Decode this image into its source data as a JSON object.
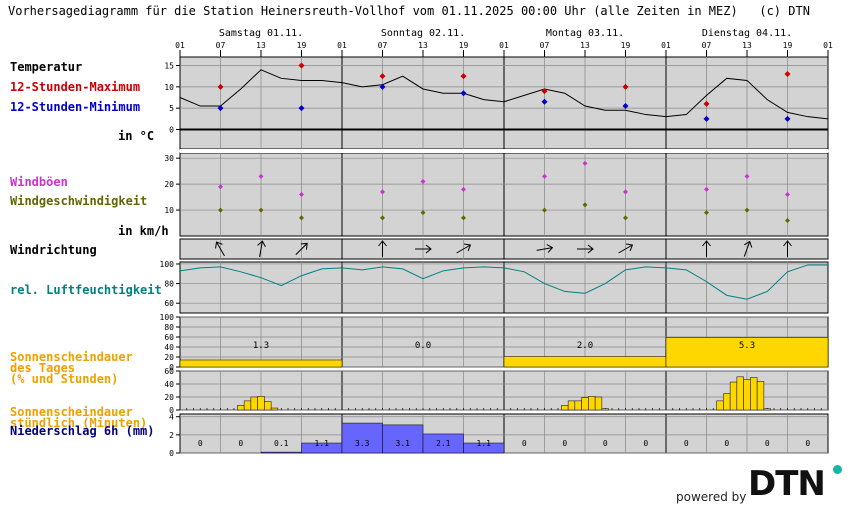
{
  "title": "Vorhersagediagramm für die Station Heinersreuth-Vollhof vom 01.11.2025 00:00 Uhr (alle Zeiten in MEZ)   (c) DTN",
  "days": [
    "Samstag 01.11.",
    "Sonntag 02.11.",
    "Montag 03.11.",
    "Dienstag 04.11."
  ],
  "hours": [
    "01",
    "07",
    "13",
    "19"
  ],
  "hour_end": "01",
  "colors": {
    "panel_bg": "#d3d3d3",
    "max": "#cc0000",
    "min": "#0000cc",
    "gust": "#cc33cc",
    "wind": "#666600",
    "humidity": "#008080",
    "sun": "#ffd700",
    "sun_label": "#f0a000",
    "precip": "#6666ff",
    "precip_label": "#000080"
  },
  "labels": {
    "temperatur": "Temperatur",
    "max": "12-Stunden-Maximum",
    "min": "12-Stunden-Minimum",
    "unit_temp": "in °C",
    "windboen": "Windböen",
    "windgeschw": "Windgeschwindigkeit",
    "unit_wind": "in km/h",
    "windrichtung": "Windrichtung",
    "feuchte": "rel. Luftfeuchtigkeit",
    "sonne_tag_1": "Sonnenscheindauer",
    "sonne_tag_2": "des Tages",
    "sonne_tag_3": "(% und Stunden)",
    "sonne_h_1": "Sonnenscheindauer",
    "sonne_h_2": "stündlich (Minuten)",
    "niederschlag": "Niederschlag 6h (mm)"
  },
  "logo": {
    "powered": "powered by",
    "brand": "DTN"
  },
  "chart_data": [
    {
      "type": "line",
      "title": "Temperatur",
      "ylim": [
        -2,
        17
      ],
      "yticks": [
        0,
        5,
        10,
        15
      ],
      "x_hours": [
        0,
        3,
        6,
        9,
        12,
        15,
        18,
        21,
        24,
        27,
        30,
        33,
        36,
        39,
        42,
        45,
        48,
        51,
        54,
        57,
        60,
        63,
        66,
        69,
        72,
        75,
        78,
        81,
        84,
        87,
        90,
        93,
        96
      ],
      "temperature": [
        7.5,
        5.5,
        5.5,
        9.5,
        14,
        12,
        11.5,
        11.5,
        11,
        10,
        10.5,
        12.5,
        9.5,
        8.5,
        8.5,
        7,
        6.5,
        8,
        9.5,
        8.5,
        5.5,
        4.5,
        4.5,
        3.5,
        3,
        3.5,
        8,
        12,
        11.5,
        7,
        4,
        3,
        2.5
      ],
      "max": [
        {
          "hour": 6,
          "value": 10
        },
        {
          "hour": 18,
          "value": 15
        },
        {
          "hour": 30,
          "value": 12.5
        },
        {
          "hour": 42,
          "value": 12.5
        },
        {
          "hour": 54,
          "value": 9
        },
        {
          "hour": 66,
          "value": 10
        },
        {
          "hour": 78,
          "value": 6
        },
        {
          "hour": 90,
          "value": 13
        }
      ],
      "min": [
        {
          "hour": 6,
          "value": 5
        },
        {
          "hour": 18,
          "value": 5
        },
        {
          "hour": 30,
          "value": 10
        },
        {
          "hour": 42,
          "value": 8.5
        },
        {
          "hour": 54,
          "value": 6.5
        },
        {
          "hour": 66,
          "value": 5.5
        },
        {
          "hour": 78,
          "value": 2.5
        },
        {
          "hour": 90,
          "value": 2.5
        }
      ]
    },
    {
      "type": "scatter",
      "title": "Wind",
      "ylim": [
        0,
        32
      ],
      "yticks": [
        10,
        20,
        30
      ],
      "points": [
        {
          "hour": 6,
          "gust": 19,
          "speed": 10
        },
        {
          "hour": 12,
          "gust": 23,
          "speed": 10
        },
        {
          "hour": 18,
          "gust": 16,
          "speed": 7
        },
        {
          "hour": 30,
          "gust": 17,
          "speed": 7
        },
        {
          "hour": 36,
          "gust": 21,
          "speed": 9
        },
        {
          "hour": 42,
          "gust": 18,
          "speed": 7
        },
        {
          "hour": 54,
          "gust": 23,
          "speed": 10
        },
        {
          "hour": 60,
          "gust": 28,
          "speed": 12
        },
        {
          "hour": 66,
          "gust": 17,
          "speed": 7
        },
        {
          "hour": 78,
          "gust": 18,
          "speed": 9
        },
        {
          "hour": 84,
          "gust": 23,
          "speed": 10
        },
        {
          "hour": 90,
          "gust": 16,
          "speed": 6
        }
      ]
    },
    {
      "type": "scatter",
      "title": "Windrichtung",
      "directions": [
        {
          "hour": 6,
          "deg": 330
        },
        {
          "hour": 12,
          "deg": 10
        },
        {
          "hour": 18,
          "deg": 45
        },
        {
          "hour": 30,
          "deg": 0
        },
        {
          "hour": 36,
          "deg": 90
        },
        {
          "hour": 42,
          "deg": 60
        },
        {
          "hour": 54,
          "deg": 80
        },
        {
          "hour": 60,
          "deg": 90
        },
        {
          "hour": 66,
          "deg": 60
        },
        {
          "hour": 78,
          "deg": 0
        },
        {
          "hour": 84,
          "deg": 20
        },
        {
          "hour": 90,
          "deg": 0
        }
      ]
    },
    {
      "type": "line",
      "title": "rel. Luftfeuchtigkeit",
      "ylim": [
        50,
        102
      ],
      "yticks": [
        60,
        80,
        100
      ],
      "x_hours": [
        0,
        3,
        6,
        9,
        12,
        15,
        18,
        21,
        24,
        27,
        30,
        33,
        36,
        39,
        42,
        45,
        48,
        51,
        54,
        57,
        60,
        63,
        66,
        69,
        72,
        75,
        78,
        81,
        84,
        87,
        90,
        93,
        96
      ],
      "values": [
        93,
        96,
        97,
        92,
        86,
        78,
        88,
        95,
        96,
        94,
        97,
        95,
        85,
        93,
        96,
        97,
        96,
        92,
        80,
        72,
        70,
        80,
        94,
        97,
        96,
        94,
        82,
        68,
        64,
        72,
        92,
        99,
        99
      ]
    },
    {
      "type": "bar",
      "title": "Sonnenscheindauer des Tages",
      "ylim": [
        0,
        100
      ],
      "yticks": [
        0,
        20,
        40,
        60,
        80,
        100
      ],
      "categories": [
        "Samstag 01.11.",
        "Sonntag 02.11.",
        "Montag 03.11.",
        "Dienstag 04.11."
      ],
      "percent": [
        14,
        0,
        21,
        59
      ],
      "hours": [
        "1.3",
        "0.0",
        "2.0",
        "5.3"
      ]
    },
    {
      "type": "bar",
      "title": "Sonnenscheindauer stündlich",
      "ylim": [
        0,
        60
      ],
      "yticks": [
        0,
        20,
        40,
        60
      ],
      "minutes_by_hour": [
        {
          "hour": 9,
          "value": 7
        },
        {
          "hour": 10,
          "value": 14
        },
        {
          "hour": 11,
          "value": 20
        },
        {
          "hour": 12,
          "value": 21
        },
        {
          "hour": 13,
          "value": 13
        },
        {
          "hour": 14,
          "value": 3
        },
        {
          "hour": 57,
          "value": 7
        },
        {
          "hour": 58,
          "value": 14
        },
        {
          "hour": 59,
          "value": 14
        },
        {
          "hour": 60,
          "value": 19
        },
        {
          "hour": 61,
          "value": 21
        },
        {
          "hour": 62,
          "value": 20
        },
        {
          "hour": 63,
          "value": 2
        },
        {
          "hour": 80,
          "value": 14
        },
        {
          "hour": 81,
          "value": 25
        },
        {
          "hour": 82,
          "value": 43
        },
        {
          "hour": 83,
          "value": 51
        },
        {
          "hour": 84,
          "value": 47
        },
        {
          "hour": 85,
          "value": 50
        },
        {
          "hour": 86,
          "value": 44
        },
        {
          "hour": 87,
          "value": 2
        }
      ]
    },
    {
      "type": "bar",
      "title": "Niederschlag 6h (mm)",
      "ylim": [
        0,
        4.3
      ],
      "yticks": [
        0,
        2,
        4
      ],
      "bins": [
        {
          "start": 0,
          "value": 0,
          "label": "0"
        },
        {
          "start": 6,
          "value": 0,
          "label": "0"
        },
        {
          "start": 12,
          "value": 0.1,
          "label": "0.1"
        },
        {
          "start": 18,
          "value": 1.1,
          "label": "1.1"
        },
        {
          "start": 24,
          "value": 3.3,
          "label": "3.3"
        },
        {
          "start": 30,
          "value": 3.1,
          "label": "3.1"
        },
        {
          "start": 36,
          "value": 2.1,
          "label": "2.1"
        },
        {
          "start": 42,
          "value": 1.1,
          "label": "1.1"
        },
        {
          "start": 48,
          "value": 0,
          "label": "0"
        },
        {
          "start": 54,
          "value": 0,
          "label": "0"
        },
        {
          "start": 60,
          "value": 0,
          "label": "0"
        },
        {
          "start": 66,
          "value": 0,
          "label": "0"
        },
        {
          "start": 72,
          "value": 0,
          "label": "0"
        },
        {
          "start": 78,
          "value": 0,
          "label": "0"
        },
        {
          "start": 84,
          "value": 0,
          "label": "0"
        },
        {
          "start": 90,
          "value": 0,
          "label": "0"
        }
      ]
    }
  ]
}
